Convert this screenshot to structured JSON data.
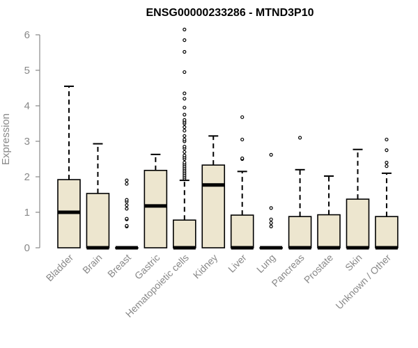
{
  "chart_data": {
    "type": "box",
    "title": "ENSG00000233286 - MTND3P10",
    "xlabel": "",
    "ylabel": "Expression",
    "ylim": [
      0,
      6.2
    ],
    "yticks": [
      0,
      1,
      2,
      3,
      4,
      5,
      6
    ],
    "grid": false,
    "legend": "none",
    "categories": [
      "Bladder",
      "Brain",
      "Breast",
      "Gastric",
      "Hematopoietic cells",
      "Kidney",
      "Liver",
      "Lung",
      "Pancreas",
      "Prostate",
      "Skin",
      "Unknown / Other"
    ],
    "boxes": [
      {
        "min": 0,
        "q1": 0,
        "median": 1.0,
        "q3": 1.92,
        "max": 4.55,
        "outliers": []
      },
      {
        "min": 0,
        "q1": 0,
        "median": 0,
        "q3": 1.53,
        "max": 2.93,
        "outliers": []
      },
      {
        "min": 0,
        "q1": 0,
        "median": 0,
        "q3": 0,
        "max": 0,
        "outliers": [
          0.6,
          0.62,
          0.8,
          0.82,
          1.1,
          1.2,
          1.3,
          1.35,
          1.8,
          1.9
        ]
      },
      {
        "min": 0,
        "q1": 0,
        "median": 1.18,
        "q3": 2.18,
        "max": 2.63,
        "outliers": []
      },
      {
        "min": 0,
        "q1": 0,
        "median": 0,
        "q3": 0.78,
        "max": 1.9,
        "outliers": [
          1.95,
          2.0,
          2.05,
          2.1,
          2.15,
          2.2,
          2.25,
          2.3,
          2.35,
          2.4,
          2.5,
          2.55,
          2.6,
          2.7,
          2.8,
          2.85,
          3.0,
          3.05,
          3.15,
          3.3,
          3.4,
          3.5,
          3.55,
          3.6,
          3.75,
          3.95,
          4.2,
          4.35,
          4.95,
          5.52,
          5.85,
          6.15
        ]
      },
      {
        "min": 0,
        "q1": 0,
        "median": 1.77,
        "q3": 2.33,
        "max": 3.15,
        "outliers": []
      },
      {
        "min": 0,
        "q1": 0,
        "median": 0,
        "q3": 0.92,
        "max": 2.15,
        "outliers": [
          2.5,
          2.52,
          3.05,
          3.68
        ]
      },
      {
        "min": 0,
        "q1": 0,
        "median": 0,
        "q3": 0,
        "max": 0,
        "outliers": [
          0.6,
          0.7,
          0.8,
          1.12,
          2.62
        ]
      },
      {
        "min": 0,
        "q1": 0,
        "median": 0,
        "q3": 0.88,
        "max": 2.2,
        "outliers": [
          3.1
        ]
      },
      {
        "min": 0,
        "q1": 0,
        "median": 0,
        "q3": 0.93,
        "max": 2.02,
        "outliers": []
      },
      {
        "min": 0,
        "q1": 0,
        "median": 0,
        "q3": 1.37,
        "max": 2.77,
        "outliers": []
      },
      {
        "min": 0,
        "q1": 0,
        "median": 0,
        "q3": 0.88,
        "max": 2.1,
        "outliers": [
          2.3,
          2.4,
          2.75,
          3.05
        ]
      }
    ],
    "colors": {
      "box_fill": "#ede6cf",
      "box_stroke": "#000000",
      "axis": "#888888",
      "axis_text": "#888888",
      "title": "#000000"
    }
  }
}
